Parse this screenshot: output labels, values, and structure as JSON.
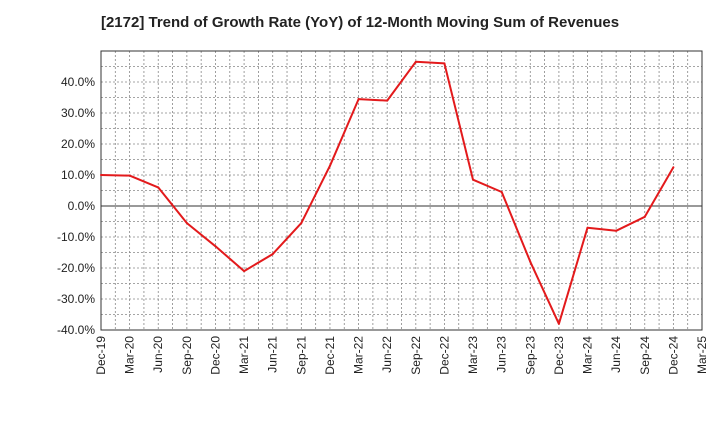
{
  "chart_data": {
    "type": "line",
    "title": "[2172]  Trend of Growth Rate (YoY) of 12-Month Moving Sum of Revenues",
    "xlabel": "",
    "ylabel": "",
    "x_tick_labels": [
      "Dec-19",
      "Mar-20",
      "Jun-20",
      "Sep-20",
      "Dec-20",
      "Mar-21",
      "Jun-21",
      "Sep-21",
      "Dec-21",
      "Mar-22",
      "Jun-22",
      "Sep-22",
      "Dec-22",
      "Mar-23",
      "Jun-23",
      "Sep-23",
      "Dec-23",
      "Mar-24",
      "Jun-24",
      "Sep-24",
      "Dec-24",
      "Mar-25"
    ],
    "y_tick_labels": [
      "40.0%",
      "30.0%",
      "20.0%",
      "10.0%",
      "0.0%",
      "-10.0%",
      "-20.0%",
      "-30.0%",
      "-40.0%"
    ],
    "y_tick_values": [
      40,
      30,
      20,
      10,
      0,
      -10,
      -20,
      -30,
      -40
    ],
    "ylim": [
      -40,
      50
    ],
    "grid": true,
    "line_color": "#e31a1c",
    "series": [
      {
        "x": [
          "Dec-19",
          "Mar-20",
          "Jun-20",
          "Sep-20",
          "Dec-20",
          "Mar-21",
          "Jun-21",
          "Sep-21",
          "Dec-21",
          "Mar-22",
          "Jun-22",
          "Sep-22",
          "Dec-22",
          "Mar-23",
          "Jun-23",
          "Sep-23",
          "Dec-23",
          "Mar-24",
          "Jun-24",
          "Sep-24",
          "Dec-24"
        ],
        "values": [
          10.0,
          9.8,
          6.0,
          -5.5,
          -13.0,
          -21.0,
          -15.5,
          -5.5,
          13.0,
          34.5,
          34.0,
          46.5,
          46.0,
          8.5,
          4.5,
          -18.0,
          -38.0,
          -7.0,
          -8.0,
          -3.5,
          12.5
        ]
      }
    ]
  }
}
